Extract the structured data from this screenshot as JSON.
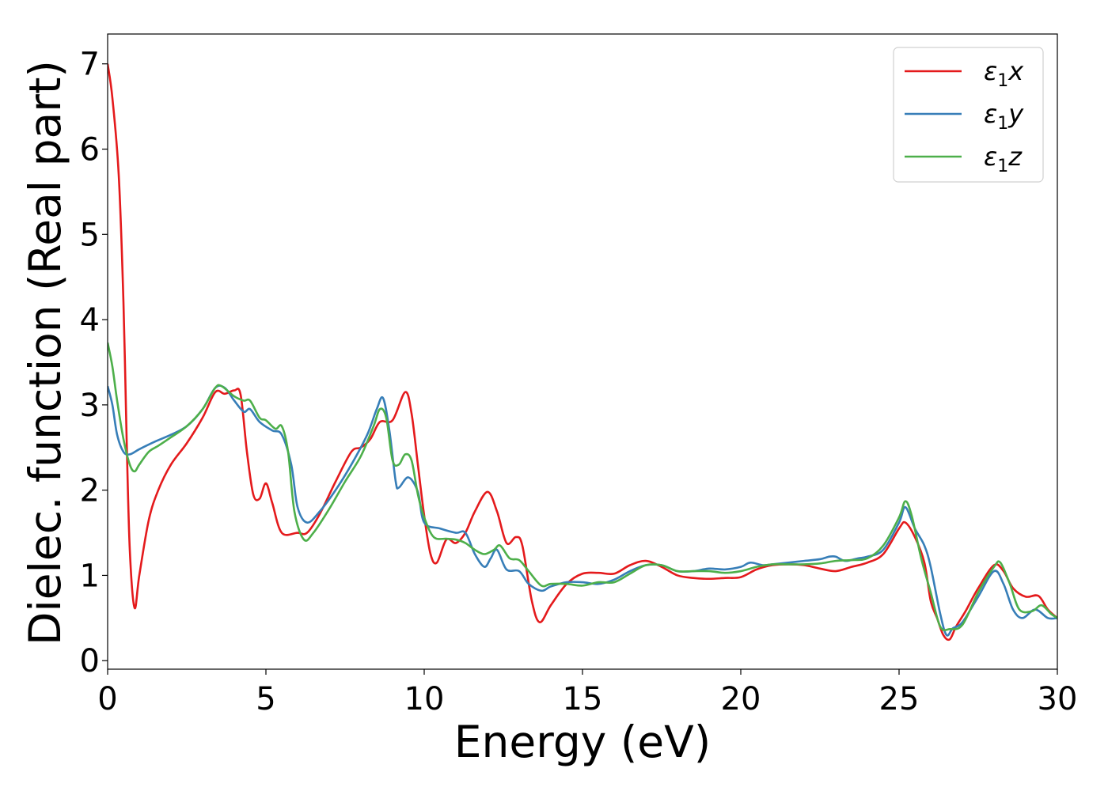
{
  "chart_data": {
    "type": "line",
    "xlabel": "Energy (eV)",
    "ylabel": "Dielec. function (Real part)",
    "xlim": [
      0,
      30
    ],
    "ylim": [
      -0.1,
      7.35
    ],
    "xticks": [
      0,
      5,
      10,
      15,
      20,
      25,
      30
    ],
    "yticks": [
      0,
      1,
      2,
      3,
      4,
      5,
      6,
      7
    ],
    "grid": false,
    "legend_position": "top-right",
    "series": [
      {
        "name": "ε1x",
        "legend_base": "ε",
        "legend_sub": "1",
        "legend_suffix": "x",
        "color": "#e41a1c",
        "points": [
          [
            0,
            7.0
          ],
          [
            0.15,
            6.6
          ],
          [
            0.35,
            5.7
          ],
          [
            0.5,
            4.2
          ],
          [
            0.6,
            2.6
          ],
          [
            0.7,
            1.3
          ],
          [
            0.85,
            0.62
          ],
          [
            1.0,
            1.0
          ],
          [
            1.3,
            1.65
          ],
          [
            1.6,
            2.0
          ],
          [
            2.0,
            2.3
          ],
          [
            2.5,
            2.55
          ],
          [
            3.0,
            2.85
          ],
          [
            3.4,
            3.15
          ],
          [
            3.7,
            3.13
          ],
          [
            4.0,
            3.17
          ],
          [
            4.2,
            3.12
          ],
          [
            4.4,
            2.45
          ],
          [
            4.6,
            1.95
          ],
          [
            4.8,
            1.9
          ],
          [
            5.0,
            2.08
          ],
          [
            5.2,
            1.85
          ],
          [
            5.5,
            1.5
          ],
          [
            6.0,
            1.5
          ],
          [
            6.3,
            1.5
          ],
          [
            6.7,
            1.72
          ],
          [
            7.2,
            2.1
          ],
          [
            7.7,
            2.45
          ],
          [
            8.0,
            2.5
          ],
          [
            8.3,
            2.6
          ],
          [
            8.6,
            2.8
          ],
          [
            9.0,
            2.82
          ],
          [
            9.4,
            3.15
          ],
          [
            9.6,
            2.9
          ],
          [
            9.8,
            2.3
          ],
          [
            10.0,
            1.7
          ],
          [
            10.2,
            1.25
          ],
          [
            10.4,
            1.15
          ],
          [
            10.7,
            1.42
          ],
          [
            11.0,
            1.38
          ],
          [
            11.3,
            1.5
          ],
          [
            11.6,
            1.75
          ],
          [
            12.0,
            1.98
          ],
          [
            12.3,
            1.75
          ],
          [
            12.6,
            1.38
          ],
          [
            12.9,
            1.45
          ],
          [
            13.1,
            1.35
          ],
          [
            13.4,
            0.7
          ],
          [
            13.65,
            0.45
          ],
          [
            14.0,
            0.65
          ],
          [
            14.5,
            0.9
          ],
          [
            15.0,
            1.02
          ],
          [
            15.5,
            1.03
          ],
          [
            16.0,
            1.02
          ],
          [
            16.5,
            1.12
          ],
          [
            17.0,
            1.17
          ],
          [
            17.5,
            1.1
          ],
          [
            18.0,
            1.0
          ],
          [
            18.5,
            0.97
          ],
          [
            19.0,
            0.96
          ],
          [
            19.5,
            0.97
          ],
          [
            20.0,
            0.98
          ],
          [
            20.5,
            1.07
          ],
          [
            21.0,
            1.12
          ],
          [
            21.5,
            1.13
          ],
          [
            22.0,
            1.12
          ],
          [
            22.5,
            1.08
          ],
          [
            23.0,
            1.05
          ],
          [
            23.5,
            1.1
          ],
          [
            24.0,
            1.15
          ],
          [
            24.5,
            1.25
          ],
          [
            25.0,
            1.55
          ],
          [
            25.2,
            1.62
          ],
          [
            25.5,
            1.45
          ],
          [
            25.8,
            1.15
          ],
          [
            26.0,
            0.7
          ],
          [
            26.2,
            0.5
          ],
          [
            26.4,
            0.3
          ],
          [
            26.6,
            0.25
          ],
          [
            26.8,
            0.4
          ],
          [
            27.1,
            0.58
          ],
          [
            27.5,
            0.85
          ],
          [
            28.0,
            1.12
          ],
          [
            28.3,
            1.05
          ],
          [
            28.6,
            0.85
          ],
          [
            29.0,
            0.75
          ],
          [
            29.4,
            0.76
          ],
          [
            29.7,
            0.6
          ],
          [
            30.0,
            0.5
          ]
        ]
      },
      {
        "name": "ε1y",
        "legend_base": "ε",
        "legend_sub": "1",
        "legend_suffix": "y",
        "color": "#377eb8",
        "points": [
          [
            0,
            3.22
          ],
          [
            0.15,
            3.0
          ],
          [
            0.3,
            2.65
          ],
          [
            0.5,
            2.45
          ],
          [
            0.7,
            2.42
          ],
          [
            1.0,
            2.48
          ],
          [
            1.5,
            2.57
          ],
          [
            2.0,
            2.65
          ],
          [
            2.5,
            2.75
          ],
          [
            3.0,
            2.95
          ],
          [
            3.4,
            3.2
          ],
          [
            3.7,
            3.2
          ],
          [
            4.0,
            3.05
          ],
          [
            4.3,
            2.92
          ],
          [
            4.5,
            2.95
          ],
          [
            4.8,
            2.8
          ],
          [
            5.2,
            2.7
          ],
          [
            5.5,
            2.65
          ],
          [
            5.8,
            2.3
          ],
          [
            6.0,
            1.8
          ],
          [
            6.3,
            1.62
          ],
          [
            6.7,
            1.75
          ],
          [
            7.2,
            2.0
          ],
          [
            7.7,
            2.3
          ],
          [
            8.2,
            2.65
          ],
          [
            8.5,
            2.95
          ],
          [
            8.7,
            3.08
          ],
          [
            8.9,
            2.7
          ],
          [
            9.1,
            2.1
          ],
          [
            9.2,
            2.03
          ],
          [
            9.5,
            2.15
          ],
          [
            9.8,
            1.98
          ],
          [
            10.0,
            1.62
          ],
          [
            10.5,
            1.55
          ],
          [
            11.0,
            1.5
          ],
          [
            11.3,
            1.5
          ],
          [
            11.6,
            1.25
          ],
          [
            11.9,
            1.1
          ],
          [
            12.1,
            1.2
          ],
          [
            12.3,
            1.3
          ],
          [
            12.6,
            1.07
          ],
          [
            13.0,
            1.05
          ],
          [
            13.3,
            0.9
          ],
          [
            13.7,
            0.82
          ],
          [
            14.0,
            0.87
          ],
          [
            14.5,
            0.92
          ],
          [
            15.0,
            0.92
          ],
          [
            15.5,
            0.9
          ],
          [
            16.0,
            0.95
          ],
          [
            16.5,
            1.05
          ],
          [
            17.0,
            1.12
          ],
          [
            17.5,
            1.12
          ],
          [
            18.0,
            1.05
          ],
          [
            18.5,
            1.05
          ],
          [
            19.0,
            1.08
          ],
          [
            19.5,
            1.07
          ],
          [
            20.0,
            1.1
          ],
          [
            20.3,
            1.15
          ],
          [
            20.7,
            1.12
          ],
          [
            21.0,
            1.13
          ],
          [
            21.5,
            1.15
          ],
          [
            22.0,
            1.17
          ],
          [
            22.5,
            1.19
          ],
          [
            22.8,
            1.22
          ],
          [
            23.0,
            1.22
          ],
          [
            23.3,
            1.17
          ],
          [
            23.7,
            1.2
          ],
          [
            24.0,
            1.22
          ],
          [
            24.5,
            1.3
          ],
          [
            25.0,
            1.62
          ],
          [
            25.2,
            1.8
          ],
          [
            25.5,
            1.55
          ],
          [
            25.8,
            1.35
          ],
          [
            26.0,
            1.1
          ],
          [
            26.3,
            0.55
          ],
          [
            26.5,
            0.3
          ],
          [
            26.7,
            0.38
          ],
          [
            27.0,
            0.45
          ],
          [
            27.5,
            0.75
          ],
          [
            28.0,
            1.05
          ],
          [
            28.3,
            0.9
          ],
          [
            28.6,
            0.6
          ],
          [
            28.9,
            0.5
          ],
          [
            29.3,
            0.6
          ],
          [
            29.7,
            0.5
          ],
          [
            30.0,
            0.5
          ]
        ]
      },
      {
        "name": "ε1z",
        "legend_base": "ε",
        "legend_sub": "1",
        "legend_suffix": "z",
        "color": "#4daf4a",
        "points": [
          [
            0,
            3.73
          ],
          [
            0.15,
            3.45
          ],
          [
            0.3,
            3.05
          ],
          [
            0.5,
            2.6
          ],
          [
            0.7,
            2.3
          ],
          [
            0.85,
            2.22
          ],
          [
            1.0,
            2.3
          ],
          [
            1.3,
            2.45
          ],
          [
            1.6,
            2.52
          ],
          [
            2.0,
            2.62
          ],
          [
            2.5,
            2.75
          ],
          [
            3.0,
            2.95
          ],
          [
            3.4,
            3.2
          ],
          [
            3.6,
            3.22
          ],
          [
            4.0,
            3.1
          ],
          [
            4.3,
            3.05
          ],
          [
            4.5,
            3.05
          ],
          [
            4.8,
            2.85
          ],
          [
            5.0,
            2.82
          ],
          [
            5.3,
            2.72
          ],
          [
            5.5,
            2.75
          ],
          [
            5.7,
            2.45
          ],
          [
            5.9,
            1.75
          ],
          [
            6.2,
            1.42
          ],
          [
            6.5,
            1.5
          ],
          [
            7.0,
            1.78
          ],
          [
            7.5,
            2.1
          ],
          [
            8.0,
            2.4
          ],
          [
            8.4,
            2.75
          ],
          [
            8.6,
            2.95
          ],
          [
            8.8,
            2.85
          ],
          [
            9.0,
            2.35
          ],
          [
            9.2,
            2.3
          ],
          [
            9.4,
            2.42
          ],
          [
            9.6,
            2.35
          ],
          [
            9.8,
            1.95
          ],
          [
            10.0,
            1.68
          ],
          [
            10.3,
            1.45
          ],
          [
            10.7,
            1.43
          ],
          [
            11.0,
            1.42
          ],
          [
            11.3,
            1.38
          ],
          [
            11.6,
            1.3
          ],
          [
            11.9,
            1.25
          ],
          [
            12.2,
            1.3
          ],
          [
            12.4,
            1.35
          ],
          [
            12.7,
            1.2
          ],
          [
            13.0,
            1.18
          ],
          [
            13.3,
            1.05
          ],
          [
            13.7,
            0.88
          ],
          [
            14.0,
            0.9
          ],
          [
            14.5,
            0.9
          ],
          [
            15.0,
            0.88
          ],
          [
            15.5,
            0.92
          ],
          [
            16.0,
            0.92
          ],
          [
            16.5,
            1.02
          ],
          [
            17.0,
            1.12
          ],
          [
            17.5,
            1.12
          ],
          [
            18.0,
            1.05
          ],
          [
            18.5,
            1.05
          ],
          [
            19.0,
            1.05
          ],
          [
            19.5,
            1.03
          ],
          [
            20.0,
            1.05
          ],
          [
            20.5,
            1.1
          ],
          [
            21.0,
            1.13
          ],
          [
            21.5,
            1.13
          ],
          [
            22.0,
            1.13
          ],
          [
            22.5,
            1.14
          ],
          [
            23.0,
            1.17
          ],
          [
            23.5,
            1.18
          ],
          [
            24.0,
            1.2
          ],
          [
            24.5,
            1.35
          ],
          [
            25.0,
            1.68
          ],
          [
            25.2,
            1.87
          ],
          [
            25.4,
            1.7
          ],
          [
            25.7,
            1.2
          ],
          [
            26.0,
            0.8
          ],
          [
            26.3,
            0.4
          ],
          [
            26.6,
            0.37
          ],
          [
            27.0,
            0.42
          ],
          [
            27.5,
            0.8
          ],
          [
            28.0,
            1.1
          ],
          [
            28.2,
            1.15
          ],
          [
            28.5,
            0.9
          ],
          [
            28.8,
            0.6
          ],
          [
            29.2,
            0.58
          ],
          [
            29.5,
            0.65
          ],
          [
            29.8,
            0.55
          ],
          [
            30.0,
            0.5
          ]
        ]
      }
    ]
  }
}
